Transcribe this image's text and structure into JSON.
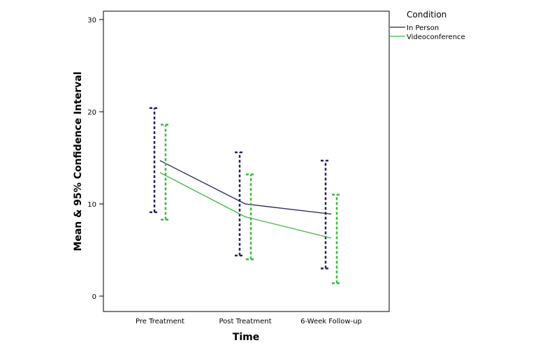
{
  "chart_data": {
    "type": "line",
    "title": "",
    "xlabel": "Time",
    "ylabel": "Mean & 95% Confidence Interval",
    "categories": [
      "Pre Treatment",
      "Post Treatment",
      "6-Week Follow-up"
    ],
    "ylim": [
      0,
      30
    ],
    "yticks": [
      "0",
      "10",
      "20",
      "30"
    ],
    "grid": false,
    "legend": {
      "title": "Condition",
      "placement": "top-right outside"
    },
    "series": [
      {
        "name": "In Person",
        "color": "#23245e",
        "values": [
          14.7,
          10.0,
          8.9
        ],
        "ci_lower": [
          9.1,
          4.4,
          3.0
        ],
        "ci_upper": [
          20.4,
          15.6,
          14.7
        ]
      },
      {
        "name": "Videoconference",
        "color": "#3cb83c",
        "values": [
          13.4,
          8.6,
          6.3
        ],
        "ci_lower": [
          8.3,
          4.0,
          1.4
        ],
        "ci_upper": [
          18.6,
          13.2,
          11.0
        ]
      }
    ]
  }
}
